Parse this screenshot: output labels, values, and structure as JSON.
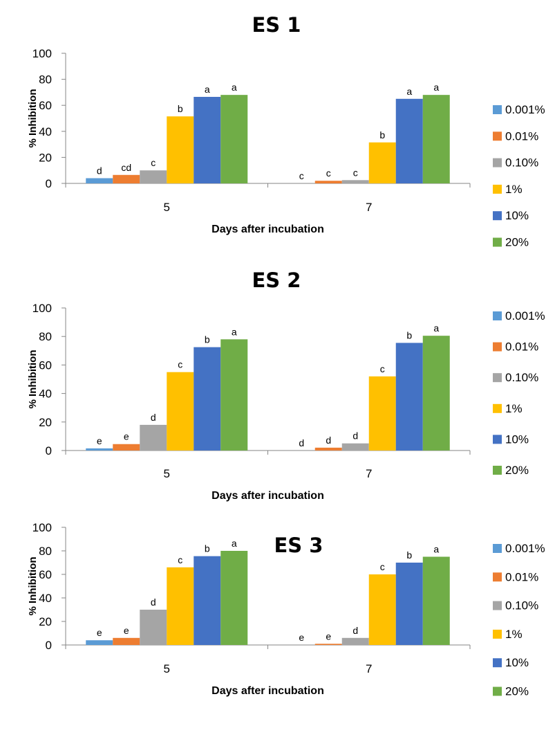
{
  "charts": [
    {
      "title": "ES 1",
      "xlabel": "Days after incubation",
      "ylabel": "% Inhibition",
      "yticks": [
        "0",
        "20",
        "40",
        "60",
        "80",
        "100"
      ],
      "categories": [
        "5",
        "7"
      ],
      "legend": [
        "0.001%",
        "0.01%",
        "0.10%",
        "1%",
        "10%",
        "20%"
      ],
      "letters": [
        [
          "d",
          "cd",
          "c",
          "b",
          "a",
          "a"
        ],
        [
          "c",
          "c",
          "c",
          "b",
          "a",
          "a"
        ]
      ]
    },
    {
      "title": "ES 2",
      "xlabel": "Days after incubation",
      "ylabel": "% Inhibition",
      "yticks": [
        "0",
        "20",
        "40",
        "60",
        "80",
        "100"
      ],
      "categories": [
        "5",
        "7"
      ],
      "legend": [
        "0.001%",
        "0.01%",
        "0.10%",
        "1%",
        "10%",
        "20%"
      ],
      "letters": [
        [
          "e",
          "e",
          "d",
          "c",
          "b",
          "a"
        ],
        [
          "d",
          "d",
          "d",
          "c",
          "b",
          "a"
        ]
      ]
    },
    {
      "title": "ES 3",
      "xlabel": "Days after incubation",
      "ylabel": "% Inhibition",
      "yticks": [
        "0",
        "20",
        "40",
        "60",
        "80",
        "100"
      ],
      "categories": [
        "5",
        "7"
      ],
      "legend": [
        "0.001%",
        "0.01%",
        "0.10%",
        "1%",
        "10%",
        "20%"
      ],
      "letters": [
        [
          "e",
          "e",
          "d",
          "c",
          "b",
          "a"
        ],
        [
          "e",
          "e",
          "d",
          "c",
          "b",
          "a"
        ]
      ]
    }
  ],
  "chart_data": [
    {
      "type": "bar",
      "title": "ES 1",
      "xlabel": "Days after incubation",
      "ylabel": "% Inhibition",
      "categories": [
        "5",
        "7"
      ],
      "ylim": [
        0,
        100
      ],
      "legend_position": "right",
      "series": [
        {
          "name": "0.001%",
          "color": "#5B9BD5",
          "values": [
            4,
            0
          ]
        },
        {
          "name": "0.01%",
          "color": "#ED7D31",
          "values": [
            6.5,
            2
          ]
        },
        {
          "name": "0.10%",
          "color": "#A5A5A5",
          "values": [
            10,
            2.5
          ]
        },
        {
          "name": "1%",
          "color": "#FFC000",
          "values": [
            51.5,
            31.5
          ]
        },
        {
          "name": "10%",
          "color": "#4472C4",
          "values": [
            66.5,
            65
          ]
        },
        {
          "name": "20%",
          "color": "#70AD47",
          "values": [
            68,
            68
          ]
        }
      ]
    },
    {
      "type": "bar",
      "title": "ES 2",
      "xlabel": "Days after incubation",
      "ylabel": "% Inhibition",
      "categories": [
        "5",
        "7"
      ],
      "ylim": [
        0,
        100
      ],
      "legend_position": "right",
      "series": [
        {
          "name": "0.001%",
          "color": "#5B9BD5",
          "values": [
            1.5,
            0
          ]
        },
        {
          "name": "0.01%",
          "color": "#ED7D31",
          "values": [
            4.5,
            2
          ]
        },
        {
          "name": "0.10%",
          "color": "#A5A5A5",
          "values": [
            18,
            5
          ]
        },
        {
          "name": "1%",
          "color": "#FFC000",
          "values": [
            55,
            52
          ]
        },
        {
          "name": "10%",
          "color": "#4472C4",
          "values": [
            72.5,
            75.5
          ]
        },
        {
          "name": "20%",
          "color": "#70AD47",
          "values": [
            78,
            80.5
          ]
        }
      ]
    },
    {
      "type": "bar",
      "title": "ES 3",
      "xlabel": "Days after incubation",
      "ylabel": "% Inhibition",
      "categories": [
        "5",
        "7"
      ],
      "ylim": [
        0,
        100
      ],
      "legend_position": "right",
      "series": [
        {
          "name": "0.001%",
          "color": "#5B9BD5",
          "values": [
            4,
            0
          ]
        },
        {
          "name": "0.01%",
          "color": "#ED7D31",
          "values": [
            6,
            1
          ]
        },
        {
          "name": "0.10%",
          "color": "#A5A5A5",
          "values": [
            30,
            6
          ]
        },
        {
          "name": "1%",
          "color": "#FFC000",
          "values": [
            66,
            60
          ]
        },
        {
          "name": "10%",
          "color": "#4472C4",
          "values": [
            75.5,
            70
          ]
        },
        {
          "name": "20%",
          "color": "#70AD47",
          "values": [
            80,
            75
          ]
        }
      ]
    }
  ]
}
